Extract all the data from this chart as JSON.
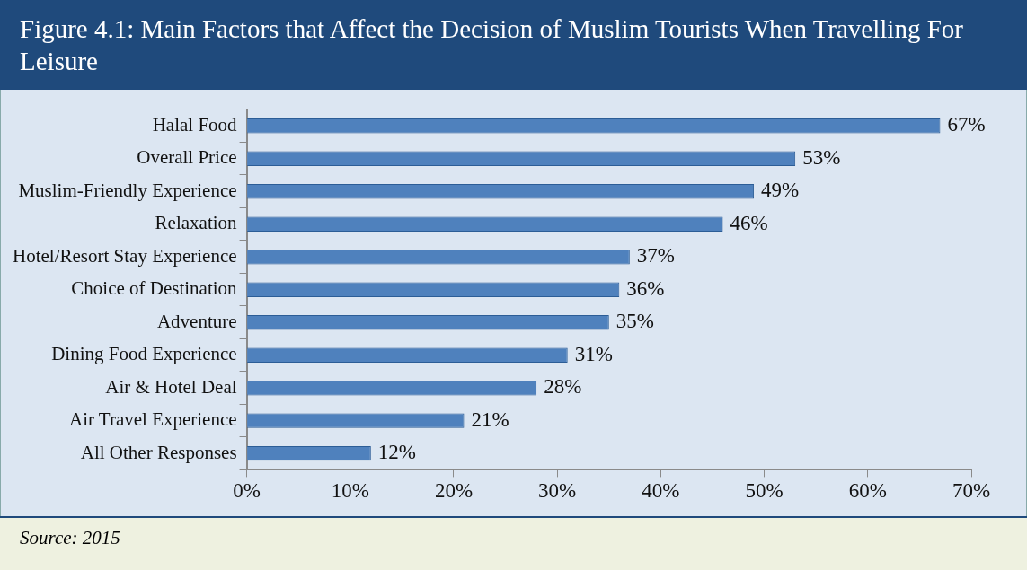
{
  "chart_data": {
    "type": "bar",
    "orientation": "horizontal",
    "title": "Figure 4.1: Main Factors that Affect the Decision of Muslim Tourists When Travelling For Leisure",
    "categories": [
      "Halal Food",
      "Overall Price",
      "Muslim-Friendly Experience",
      "Relaxation",
      "Hotel/Resort Stay Experience",
      "Choice of Destination",
      "Adventure",
      "Dining Food Experience",
      "Air & Hotel Deal",
      "Air Travel Experience",
      "All Other Responses"
    ],
    "values": [
      67,
      53,
      49,
      46,
      37,
      36,
      35,
      31,
      28,
      21,
      12
    ],
    "value_labels": [
      "67%",
      "53%",
      "49%",
      "46%",
      "37%",
      "36%",
      "35%",
      "31%",
      "28%",
      "21%",
      "12%"
    ],
    "color": "#4f81bd",
    "xlim": [
      0,
      70
    ],
    "xticks": [
      {
        "value": 0,
        "label": "0%"
      },
      {
        "value": 10,
        "label": "10%"
      },
      {
        "value": 20,
        "label": "20%"
      },
      {
        "value": 30,
        "label": "30%"
      },
      {
        "value": 40,
        "label": "40%"
      },
      {
        "value": 50,
        "label": "50%"
      },
      {
        "value": 60,
        "label": "60%"
      },
      {
        "value": 70,
        "label": "70%"
      }
    ],
    "annotations": [
      "Source: 2015"
    ]
  }
}
